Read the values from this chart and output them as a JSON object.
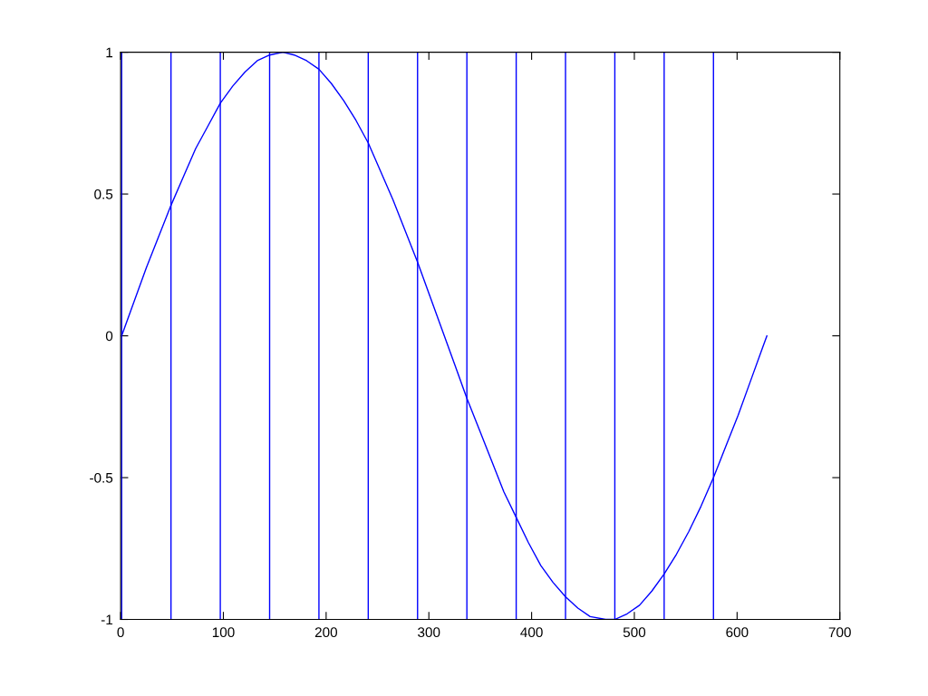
{
  "chart_data": {
    "type": "line",
    "x": [
      1,
      13,
      25,
      37,
      49,
      61,
      73,
      85,
      97,
      109,
      121,
      133,
      145,
      158,
      169,
      181,
      193,
      205,
      217,
      229,
      241,
      253,
      265,
      277,
      289,
      301,
      313,
      325,
      337,
      349,
      361,
      373,
      385,
      397,
      409,
      421,
      433,
      445,
      457,
      472,
      481,
      493,
      505,
      517,
      529,
      541,
      553,
      565,
      577,
      589,
      601,
      613,
      625,
      629
    ],
    "series": [
      {
        "color": "#0000ff",
        "values": [
          0,
          0.12,
          0.24,
          0.35,
          0.46,
          0.56,
          0.66,
          0.74,
          0.82,
          0.88,
          0.93,
          0.97,
          0.99,
          1.0,
          0.99,
          0.97,
          0.94,
          0.89,
          0.83,
          0.76,
          0.68,
          0.58,
          0.48,
          0.37,
          0.26,
          0.14,
          0.02,
          -0.1,
          -0.22,
          -0.33,
          -0.44,
          -0.55,
          -0.64,
          -0.73,
          -0.81,
          -0.87,
          -0.92,
          -0.96,
          -0.99,
          -1.0,
          -1.0,
          -0.98,
          -0.95,
          -0.9,
          -0.84,
          -0.77,
          -0.69,
          -0.6,
          -0.5,
          -0.39,
          -0.28,
          -0.16,
          -0.04,
          0.0
        ]
      }
    ],
    "xlim": [
      0,
      700
    ],
    "ylim": [
      -1,
      1
    ],
    "xticks": [
      0,
      100,
      200,
      300,
      400,
      500,
      600,
      700
    ],
    "yticks": [
      -1,
      -0.5,
      0,
      0.5,
      1
    ],
    "ref_lines": [
      {
        "axis": "x",
        "value": 1,
        "color": "#0000ff"
      },
      {
        "axis": "x",
        "value": 49,
        "color": "#0000ff"
      },
      {
        "axis": "x",
        "value": 97,
        "color": "#0000ff"
      },
      {
        "axis": "x",
        "value": 145,
        "color": "#0000ff"
      },
      {
        "axis": "x",
        "value": 193,
        "color": "#0000ff"
      },
      {
        "axis": "x",
        "value": 241,
        "color": "#0000ff"
      },
      {
        "axis": "x",
        "value": 289,
        "color": "#0000ff"
      },
      {
        "axis": "x",
        "value": 337,
        "color": "#0000ff"
      },
      {
        "axis": "x",
        "value": 385,
        "color": "#0000ff"
      },
      {
        "axis": "x",
        "value": 433,
        "color": "#0000ff"
      },
      {
        "axis": "x",
        "value": 481,
        "color": "#0000ff"
      },
      {
        "axis": "x",
        "value": 529,
        "color": "#0000ff"
      },
      {
        "axis": "x",
        "value": 577,
        "color": "#0000ff"
      }
    ]
  }
}
